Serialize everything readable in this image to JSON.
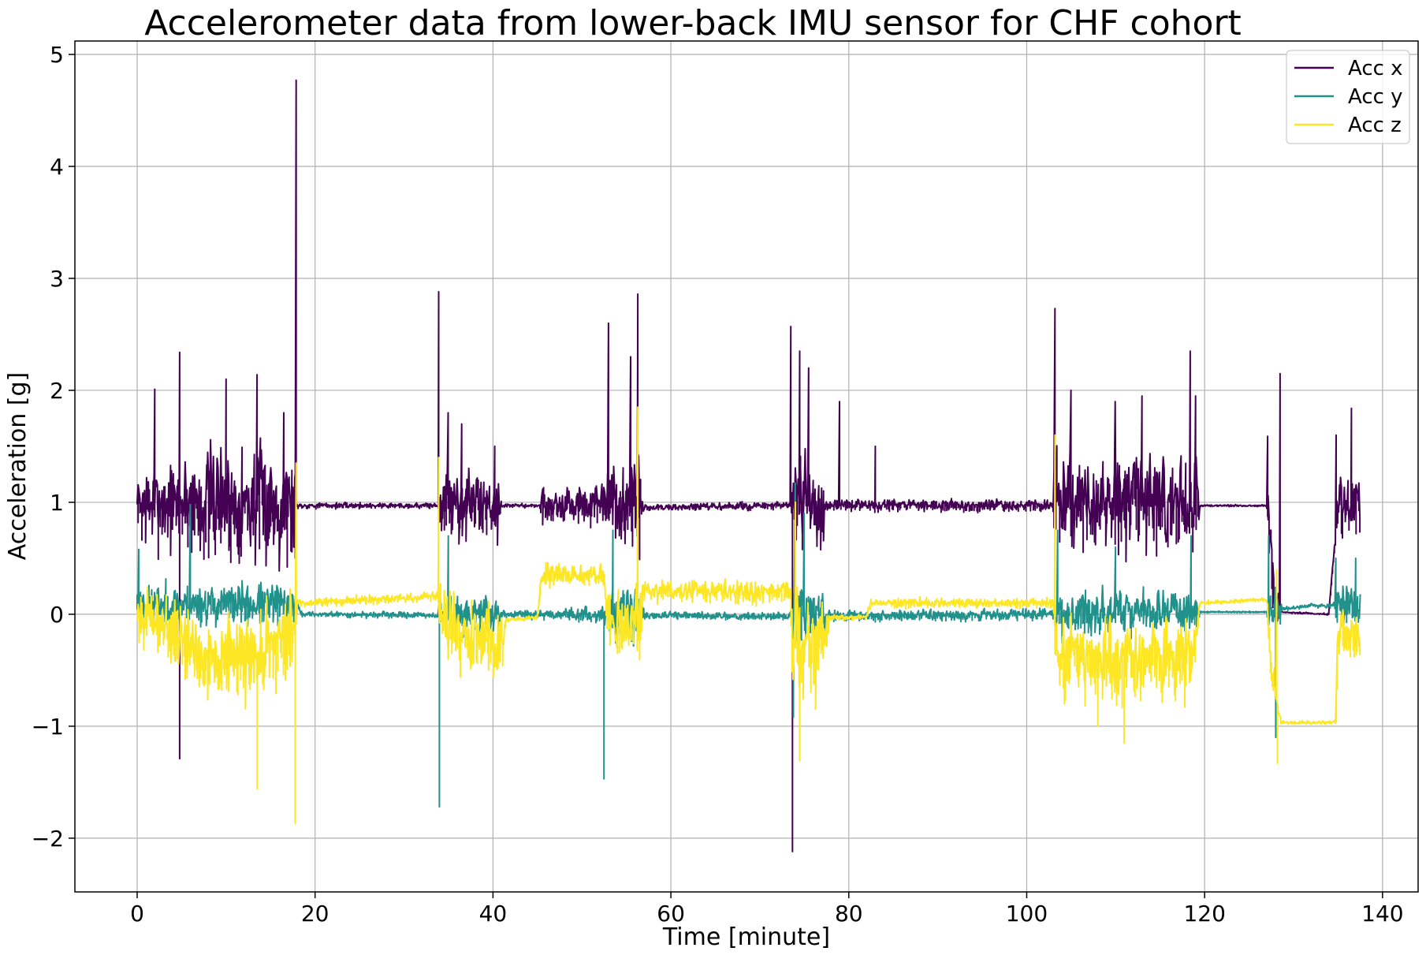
{
  "chart_data": {
    "type": "line",
    "title": "Accelerometer data from lower-back IMU sensor for CHF cohort",
    "xlabel": "Time [minute]",
    "ylabel": "Acceleration [g]",
    "xlim": [
      -7,
      144
    ],
    "ylim": [
      -2.48,
      5.12
    ],
    "xticks": [
      0,
      20,
      40,
      60,
      80,
      100,
      120,
      140
    ],
    "xtick_labels": [
      "0",
      "20",
      "40",
      "60",
      "80",
      "100",
      "120",
      "140"
    ],
    "yticks": [
      -2,
      -1,
      0,
      1,
      2,
      3,
      4,
      5
    ],
    "ytick_labels": [
      "−2",
      "−1",
      "0",
      "1",
      "2",
      "3",
      "4",
      "5"
    ],
    "grid": true,
    "legend_position": "top-right",
    "series": [
      {
        "name": "Acc x",
        "color": "#440154",
        "base": [
          [
            0,
            0.97
          ],
          [
            18,
            0.97
          ],
          [
            34,
            0.97
          ],
          [
            45,
            0.97
          ],
          [
            56,
            0.95
          ],
          [
            74,
            0.97
          ],
          [
            103,
            0.97
          ],
          [
            119,
            0.97
          ],
          [
            127,
            0.97
          ],
          [
            128,
            0.02
          ],
          [
            134,
            0.0
          ],
          [
            135,
            0.97
          ],
          [
            137.5,
            0.97
          ]
        ],
        "noise": [
          [
            0,
            0.08
          ],
          [
            0.4,
            0.45
          ],
          [
            5,
            0.45
          ],
          [
            7,
            0.6
          ],
          [
            17.8,
            0.6
          ],
          [
            18,
            0.03
          ],
          [
            33.8,
            0.03
          ],
          [
            34,
            0.35
          ],
          [
            40.5,
            0.35
          ],
          [
            41,
            0.02
          ],
          [
            45,
            0.02
          ],
          [
            45.5,
            0.2
          ],
          [
            52.5,
            0.2
          ],
          [
            53,
            0.5
          ],
          [
            56.5,
            0.5
          ],
          [
            57,
            0.04
          ],
          [
            73.5,
            0.04
          ],
          [
            73.7,
            0.5
          ],
          [
            77,
            0.5
          ],
          [
            77.5,
            0.06
          ],
          [
            103,
            0.06
          ],
          [
            103.2,
            0.5
          ],
          [
            119.2,
            0.5
          ],
          [
            119.5,
            0.01
          ],
          [
            127,
            0.01
          ],
          [
            127.2,
            0.3
          ],
          [
            128.2,
            0.3
          ],
          [
            128.5,
            0.01
          ],
          [
            134.5,
            0.01
          ],
          [
            134.8,
            0.3
          ],
          [
            137.5,
            0.3
          ]
        ],
        "spikes": [
          [
            17.9,
            4.77
          ],
          [
            17.8,
            0.5
          ],
          [
            4.8,
            2.34
          ],
          [
            4.8,
            -1.29
          ],
          [
            2,
            2.01
          ],
          [
            10,
            2.1
          ],
          [
            13.5,
            2.14
          ],
          [
            16.5,
            1.8
          ],
          [
            33.9,
            2.88
          ],
          [
            35,
            1.8
          ],
          [
            36.5,
            1.7
          ],
          [
            40.2,
            1.5
          ],
          [
            53,
            2.6
          ],
          [
            55.5,
            2.3
          ],
          [
            56.3,
            2.86
          ],
          [
            73.5,
            2.57
          ],
          [
            73.7,
            -2.12
          ],
          [
            74.5,
            2.35
          ],
          [
            75.5,
            2.2
          ],
          [
            79,
            1.9
          ],
          [
            83,
            1.5
          ],
          [
            103.2,
            2.73
          ],
          [
            105,
            2.0
          ],
          [
            110,
            1.9
          ],
          [
            113,
            1.95
          ],
          [
            118.4,
            2.35
          ],
          [
            119,
            1.95
          ],
          [
            127.1,
            1.59
          ],
          [
            128.5,
            2.15
          ],
          [
            134.8,
            1.6
          ],
          [
            136.5,
            1.84
          ]
        ],
        "seed": 7
      },
      {
        "name": "Acc y",
        "color": "#21918c",
        "base": [
          [
            0,
            0.08
          ],
          [
            18,
            0.08
          ],
          [
            18.5,
            0.0
          ],
          [
            34,
            -0.01
          ],
          [
            45,
            0.0
          ],
          [
            56,
            -0.01
          ],
          [
            74,
            -0.02
          ],
          [
            103,
            0.0
          ],
          [
            119,
            0.02
          ],
          [
            127,
            0.02
          ],
          [
            128,
            0.04
          ],
          [
            132,
            0.08
          ],
          [
            134,
            0.07
          ],
          [
            135,
            0.1
          ],
          [
            137.5,
            0.1
          ]
        ],
        "noise": [
          [
            0,
            0.2
          ],
          [
            17.8,
            0.22
          ],
          [
            18.2,
            0.03
          ],
          [
            33.8,
            0.03
          ],
          [
            34,
            0.18
          ],
          [
            40.5,
            0.18
          ],
          [
            41,
            0.04
          ],
          [
            45,
            0.05
          ],
          [
            52.5,
            0.08
          ],
          [
            53,
            0.25
          ],
          [
            56.5,
            0.25
          ],
          [
            57,
            0.04
          ],
          [
            73.5,
            0.04
          ],
          [
            73.7,
            0.3
          ],
          [
            77,
            0.3
          ],
          [
            77.5,
            0.06
          ],
          [
            103,
            0.06
          ],
          [
            103.2,
            0.22
          ],
          [
            119.2,
            0.22
          ],
          [
            119.5,
            0.01
          ],
          [
            127,
            0.01
          ],
          [
            127.2,
            0.2
          ],
          [
            128.5,
            0.2
          ],
          [
            128.8,
            0.02
          ],
          [
            134.5,
            0.02
          ],
          [
            134.8,
            0.2
          ],
          [
            137.5,
            0.2
          ]
        ],
        "spikes": [
          [
            0.2,
            0.58
          ],
          [
            6,
            0.98
          ],
          [
            34,
            -1.72
          ],
          [
            35,
            0.7
          ],
          [
            52.5,
            -1.47
          ],
          [
            53.5,
            0.75
          ],
          [
            74,
            1.17
          ],
          [
            75,
            0.9
          ],
          [
            73.8,
            -0.92
          ],
          [
            103.5,
            0.75
          ],
          [
            110,
            0.6
          ],
          [
            118.5,
            0.7
          ],
          [
            127.2,
            0.7
          ],
          [
            128,
            -1.1
          ],
          [
            134.8,
            0.5
          ],
          [
            137,
            0.5
          ]
        ],
        "seed": 23
      },
      {
        "name": "Acc z",
        "color": "#fde725",
        "base": [
          [
            0,
            0.0
          ],
          [
            5,
            -0.2
          ],
          [
            7,
            -0.4
          ],
          [
            12,
            -0.4
          ],
          [
            17.8,
            -0.2
          ],
          [
            18,
            0.1
          ],
          [
            34,
            0.16
          ],
          [
            34.5,
            -0.1
          ],
          [
            41,
            -0.3
          ],
          [
            41.5,
            -0.05
          ],
          [
            45,
            -0.03
          ],
          [
            45.5,
            0.35
          ],
          [
            52.5,
            0.35
          ],
          [
            53,
            -0.1
          ],
          [
            56.5,
            -0.1
          ],
          [
            57,
            0.2
          ],
          [
            73.5,
            0.2
          ],
          [
            73.7,
            -0.3
          ],
          [
            77,
            -0.3
          ],
          [
            78,
            -0.03
          ],
          [
            82,
            -0.03
          ],
          [
            82.5,
            0.1
          ],
          [
            103,
            0.1
          ],
          [
            103.5,
            -0.4
          ],
          [
            119,
            -0.4
          ],
          [
            119.5,
            0.1
          ],
          [
            127,
            0.13
          ],
          [
            127.5,
            -0.5
          ],
          [
            128.6,
            -0.97
          ],
          [
            134.8,
            -0.97
          ],
          [
            135,
            -0.2
          ],
          [
            137.5,
            -0.2
          ]
        ],
        "noise": [
          [
            0,
            0.25
          ],
          [
            5,
            0.4
          ],
          [
            17.8,
            0.45
          ],
          [
            18,
            0.04
          ],
          [
            33.8,
            0.05
          ],
          [
            34,
            0.4
          ],
          [
            41,
            0.4
          ],
          [
            41.5,
            0.02
          ],
          [
            45,
            0.02
          ],
          [
            45.5,
            0.12
          ],
          [
            52.5,
            0.12
          ],
          [
            53,
            0.4
          ],
          [
            56.5,
            0.4
          ],
          [
            57,
            0.12
          ],
          [
            73.5,
            0.12
          ],
          [
            73.7,
            0.5
          ],
          [
            77,
            0.5
          ],
          [
            78,
            0.03
          ],
          [
            82,
            0.03
          ],
          [
            82.5,
            0.05
          ],
          [
            103,
            0.05
          ],
          [
            103.5,
            0.4
          ],
          [
            119,
            0.4
          ],
          [
            119.5,
            0.02
          ],
          [
            127,
            0.02
          ],
          [
            127.5,
            0.3
          ],
          [
            128.6,
            0.02
          ],
          [
            134.8,
            0.02
          ],
          [
            135,
            0.25
          ],
          [
            137.5,
            0.25
          ]
        ],
        "spikes": [
          [
            17.8,
            -1.87
          ],
          [
            17.9,
            1.35
          ],
          [
            13.5,
            -1.56
          ],
          [
            33.9,
            1.4
          ],
          [
            56.3,
            1.85
          ],
          [
            74,
            1.0
          ],
          [
            74.5,
            -1.31
          ],
          [
            103.2,
            1.6
          ],
          [
            108,
            -1.0
          ],
          [
            111,
            -1.15
          ],
          [
            128.2,
            -1.33
          ],
          [
            128.1,
            0.4
          ]
        ],
        "seed": 101
      }
    ]
  }
}
